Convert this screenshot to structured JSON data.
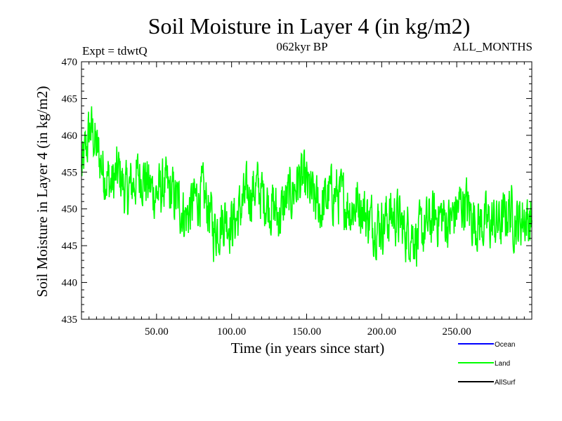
{
  "chart_data": {
    "type": "line",
    "title": "Soil Moisture in Layer 4 (in kg/m2)",
    "subtitle_left": "Expt = tdwtQ",
    "subtitle_center": "062kyr BP",
    "subtitle_right": "ALL_MONTHS",
    "xlabel": "Time (in years since start)",
    "ylabel": "Soil Moisture in Layer 4 (in kg/m2)",
    "xlim": [
      0,
      300
    ],
    "ylim": [
      435,
      470
    ],
    "x_ticks": [
      50,
      100,
      150,
      200,
      250
    ],
    "x_tick_labels": [
      "50.00",
      "100.00",
      "150.00",
      "200.00",
      "250.00"
    ],
    "y_ticks": [
      435,
      440,
      445,
      450,
      455,
      460,
      465,
      470
    ],
    "y_tick_labels": [
      "435",
      "440",
      "445",
      "450",
      "455",
      "460",
      "465",
      "470"
    ],
    "legend": [
      {
        "name": "Ocean",
        "color": "#0000ff"
      },
      {
        "name": "Land",
        "color": "#00ff00"
      },
      {
        "name": "AllSurf",
        "color": "#000000"
      }
    ],
    "series": [
      {
        "name": "Land",
        "color": "#00ff00",
        "x": [
          0,
          2,
          4,
          6,
          8,
          10,
          12,
          15,
          18,
          20,
          22,
          25,
          28,
          30,
          33,
          36,
          40,
          45,
          50,
          55,
          60,
          64,
          67,
          70,
          75,
          80,
          85,
          88,
          92,
          96,
          100,
          104,
          108,
          112,
          116,
          120,
          124,
          128,
          132,
          136,
          140,
          145,
          150,
          155,
          160,
          165,
          170,
          175,
          180,
          185,
          190,
          195,
          200,
          205,
          210,
          215,
          220,
          224,
          228,
          232,
          236,
          240,
          245,
          250,
          255,
          260,
          265,
          270,
          275,
          280,
          285,
          290,
          295,
          300
        ],
        "y": [
          455,
          457,
          459,
          461,
          460,
          458,
          457,
          455,
          454,
          453,
          454,
          455,
          453,
          452,
          453,
          454,
          455,
          453,
          452,
          453,
          452,
          451,
          450,
          449,
          451,
          452,
          450,
          447,
          448,
          449,
          448,
          449,
          451,
          452,
          453,
          452,
          451,
          450,
          449,
          451,
          452,
          454,
          453,
          451,
          450,
          452,
          452,
          451,
          450,
          451,
          449,
          448,
          448,
          449,
          449,
          447,
          447,
          446,
          447,
          448,
          449,
          449,
          448,
          450,
          451,
          449,
          448,
          448,
          448,
          448,
          450,
          448,
          449,
          448
        ]
      }
    ]
  }
}
